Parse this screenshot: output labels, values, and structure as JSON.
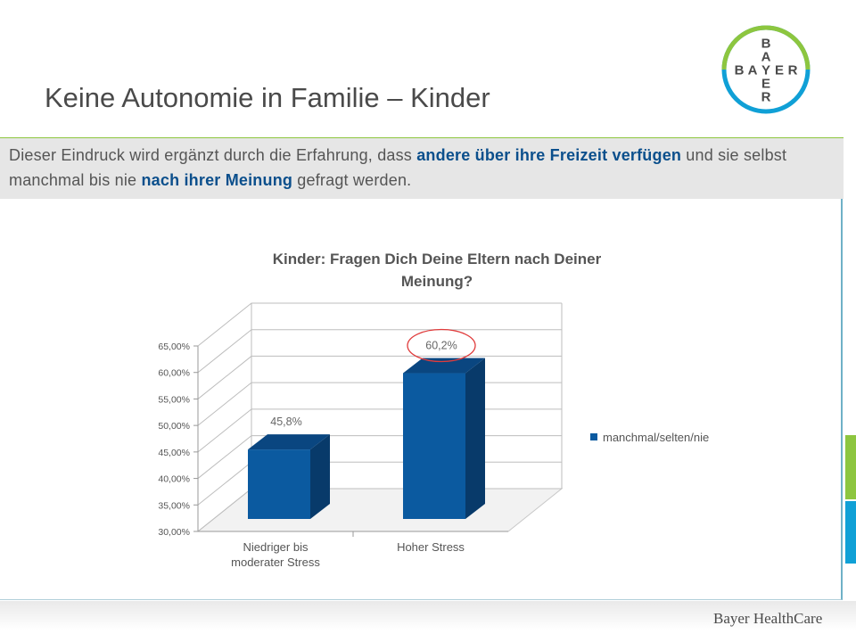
{
  "slide": {
    "title": "Keine Autonomie in Familie – Kinder",
    "subtitle_parts": [
      {
        "text": "Dieser Eindruck wird ergänzt durch die Erfahrung, dass ",
        "highlight": false
      },
      {
        "text": "andere über ihre Freizeit verfügen",
        "highlight": true
      },
      {
        "text": " und sie selbst manchmal bis nie ",
        "highlight": false
      },
      {
        "text": "nach ihrer Meinung",
        "highlight": true
      },
      {
        "text": " gefragt werden.",
        "highlight": false
      }
    ],
    "footer_brand": "Bayer HealthCare"
  },
  "logo": {
    "horizontal": "BAYER",
    "vertical": "BAYER",
    "colors": {
      "ring_top": "#8dc63f",
      "ring_bottom": "#10a0d6",
      "text": "#4a4a4a"
    }
  },
  "colors": {
    "accent_green": "#8dc63f",
    "accent_blue": "#10a0d6",
    "highlight_text": "#0b4f8c",
    "bar_front": "#0b5aa0",
    "bar_side": "#083a6a",
    "bar_top": "#0a4680",
    "annotation_circle": "#e03c3c"
  },
  "chart_data": {
    "type": "bar",
    "title": "Kinder: Fragen Dich Deine Eltern nach Deiner Meinung?",
    "categories": [
      "Niedriger bis moderater Stress",
      "Hoher Stress"
    ],
    "category_lines": [
      [
        "Niedriger bis",
        "moderater Stress"
      ],
      [
        "Hoher Stress"
      ]
    ],
    "series": [
      {
        "name": "manchmal/selten/nie",
        "values": [
          45.8,
          60.2
        ],
        "data_labels": [
          "45,8%",
          "60,2%"
        ]
      }
    ],
    "ylim": [
      30,
      65
    ],
    "yticks": [
      30,
      35,
      40,
      45,
      50,
      55,
      60,
      65
    ],
    "ytick_labels": [
      "30,00%",
      "35,00%",
      "40,00%",
      "45,00%",
      "50,00%",
      "55,00%",
      "60,00%",
      "65,00%"
    ],
    "style_3d": true,
    "grid": true,
    "legend_position": "right",
    "highlighted_label": "60,2%"
  }
}
